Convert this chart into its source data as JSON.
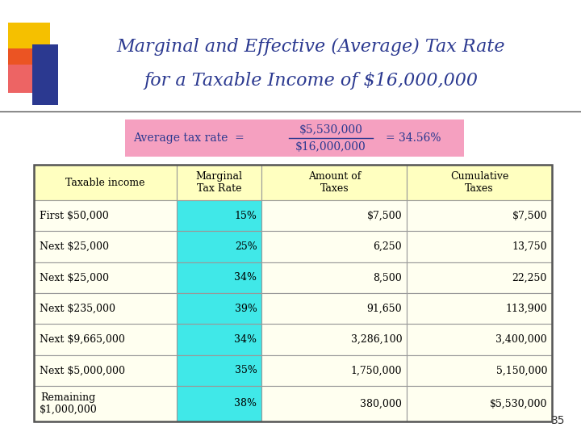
{
  "title_line1": "Marginal and Effective (Average) Tax Rate",
  "title_line2": "for a Taxable Income of $16,000,000",
  "title_color": "#2B3990",
  "formula_numerator": "$5,530,000",
  "formula_denominator": "$16,000,000",
  "formula_result": "= 34.56%",
  "formula_label": "Average tax rate  =",
  "formula_bg": "#F5A0C0",
  "table_header": [
    "Taxable income",
    "Marginal\nTax Rate",
    "Amount of\nTaxes",
    "Cumulative\nTaxes"
  ],
  "table_data": [
    [
      "First $50,000",
      "15%",
      "$7,500",
      "$7,500"
    ],
    [
      "Next $25,000",
      "25%",
      "6,250",
      "13,750"
    ],
    [
      "Next $25,000",
      "34%",
      "8,500",
      "22,250"
    ],
    [
      "Next $235,000",
      "39%",
      "91,650",
      "113,900"
    ],
    [
      "Next $9,665,000",
      "34%",
      "3,286,100",
      "3,400,000"
    ],
    [
      "Next $5,000,000",
      "35%",
      "1,750,000",
      "5,150,000"
    ],
    [
      "Remaining\n$1,000,000",
      "38%",
      "380,000",
      "$5,530,000"
    ]
  ],
  "header_bg": "#FFFFC0",
  "col1_bg": "#FFFFF0",
  "col2_bg": "#40E8E8",
  "col34_bg": "#FFFFF0",
  "slide_bg": "#FFFFFF",
  "decoration_gold": "#F5C000",
  "decoration_blue": "#2B3990",
  "decoration_red": "#E83030",
  "page_number": "35",
  "table_text_color": "#000000",
  "border_color": "#999999",
  "title_fontsize": 16,
  "formula_fontsize": 10,
  "table_fontsize": 9
}
